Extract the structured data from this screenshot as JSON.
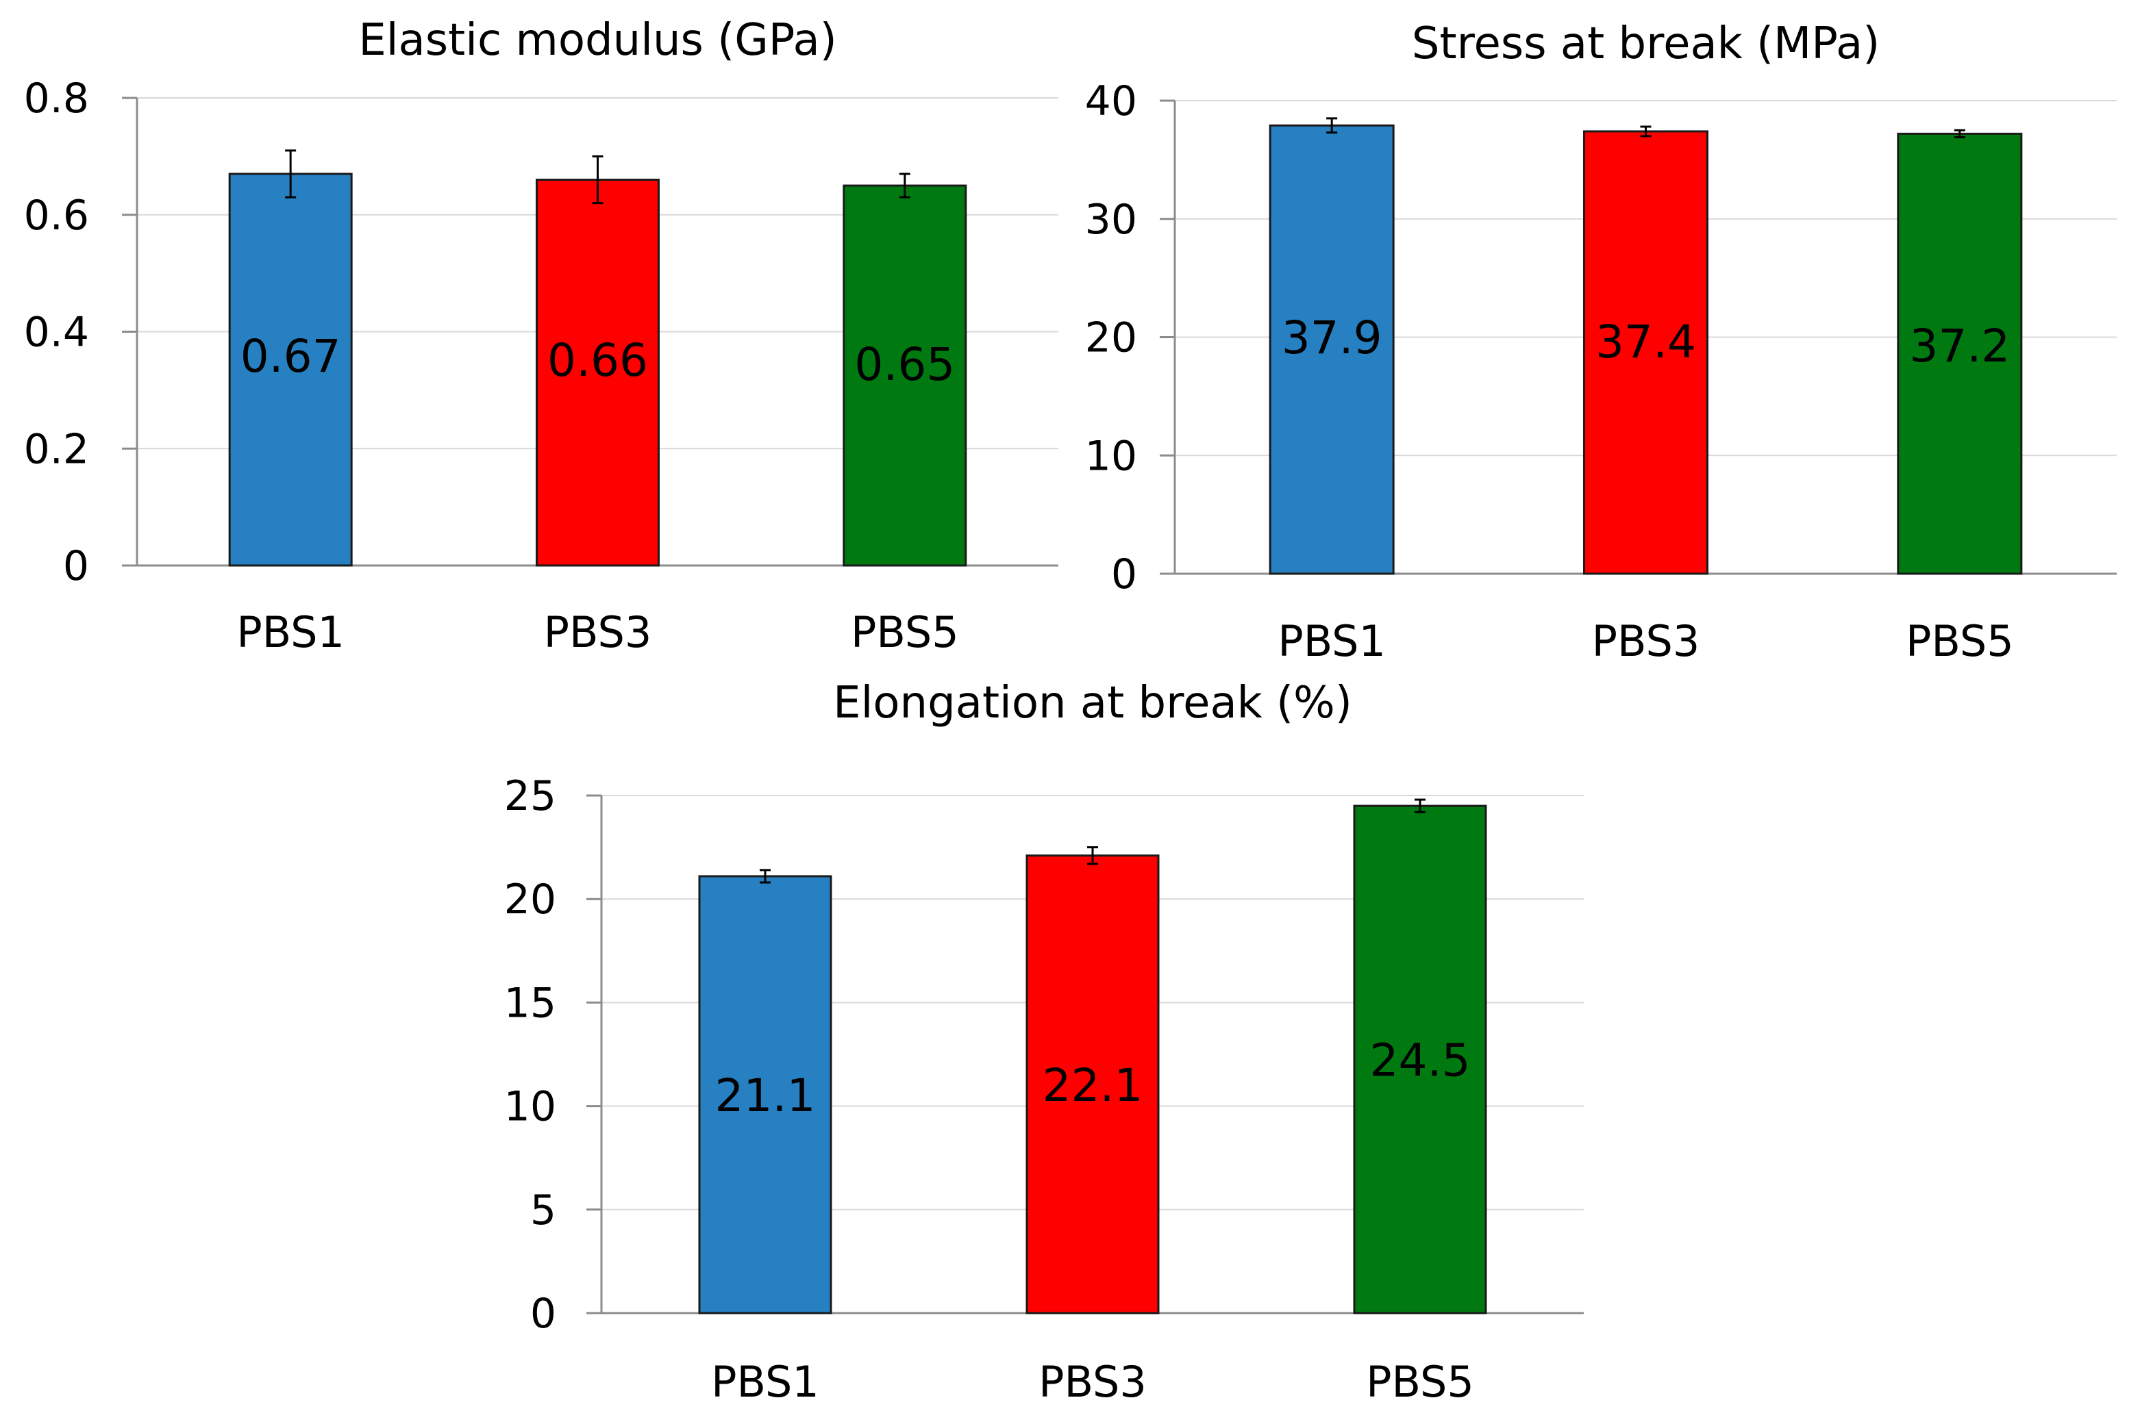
{
  "colors": {
    "PBS1": "#2680c2",
    "PBS3": "#ff0000",
    "PBS5": "#007a10"
  },
  "chart_data": [
    {
      "type": "bar",
      "title": "Elastic modulus (GPa)",
      "categories": [
        "PBS1",
        "PBS3",
        "PBS5"
      ],
      "values": [
        0.67,
        0.66,
        0.65
      ],
      "errors": [
        0.04,
        0.04,
        0.02
      ],
      "data_labels": [
        "0.67",
        "0.66",
        "0.65"
      ],
      "yticks": [
        0,
        0.2,
        0.4,
        0.6,
        0.8
      ],
      "ytick_labels": [
        "0",
        "0.2",
        "0.4",
        "0.6",
        "0.8"
      ],
      "ylim": [
        0,
        0.8
      ],
      "xlabel": "",
      "ylabel": "",
      "grid": true
    },
    {
      "type": "bar",
      "title": "Stress at break (MPa)",
      "categories": [
        "PBS1",
        "PBS3",
        "PBS5"
      ],
      "values": [
        37.9,
        37.4,
        37.2
      ],
      "errors": [
        0.6,
        0.4,
        0.3
      ],
      "data_labels": [
        "37.9",
        "37.4",
        "37.2"
      ],
      "yticks": [
        0,
        10,
        20,
        30,
        40
      ],
      "ytick_labels": [
        "0",
        "10",
        "20",
        "30",
        "40"
      ],
      "ylim": [
        0,
        40
      ],
      "xlabel": "",
      "ylabel": "",
      "grid": true
    },
    {
      "type": "bar",
      "title": "Elongation at break (%)",
      "categories": [
        "PBS1",
        "PBS3",
        "PBS5"
      ],
      "values": [
        21.1,
        22.1,
        24.5
      ],
      "errors": [
        0.3,
        0.4,
        0.3
      ],
      "data_labels": [
        "21.1",
        "22.1",
        "24.5"
      ],
      "yticks": [
        0,
        5,
        10,
        15,
        20,
        25
      ],
      "ytick_labels": [
        "0",
        "5",
        "10",
        "15",
        "20",
        "25"
      ],
      "ylim": [
        0,
        25
      ],
      "xlabel": "",
      "ylabel": "",
      "grid": true
    }
  ]
}
